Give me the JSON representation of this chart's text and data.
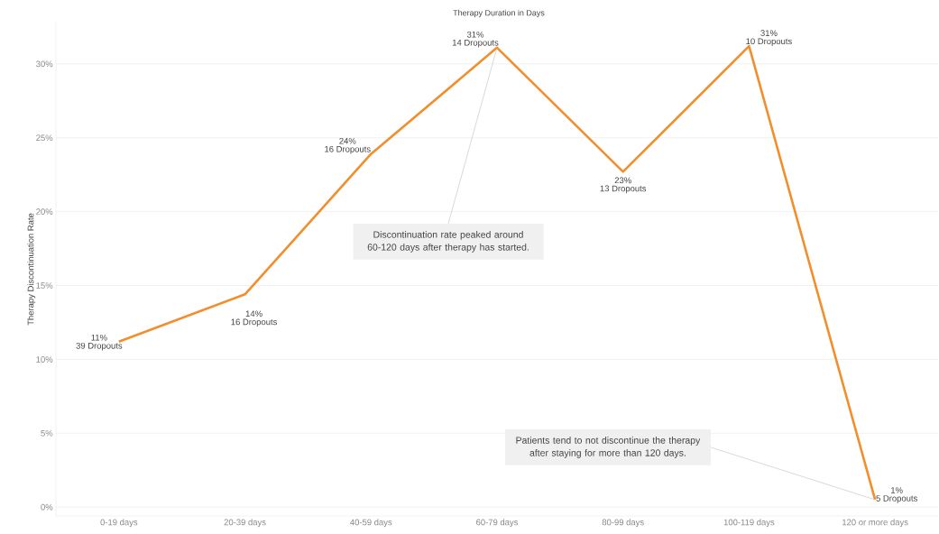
{
  "chart_data": {
    "type": "line",
    "title": "Therapy Duration in Days",
    "ylabel": "Therapy Discontinuation Rate",
    "categories": [
      "0-19 days",
      "20-39 days",
      "40-59 days",
      "60-79 days",
      "80-99 days",
      "100-119 days",
      "120 or more days"
    ],
    "series": [
      {
        "color": "#f28e2b",
        "values": [
          11.2,
          14.4,
          23.9,
          31.1,
          22.7,
          31.2,
          0.5
        ],
        "value_labels": [
          "11%",
          "14%",
          "24%",
          "31%",
          "23%",
          "31%",
          "1%"
        ]
      }
    ],
    "ylim": [
      -0.6,
      32.8
    ],
    "yticks": [
      {
        "value": 0,
        "label": "0%"
      },
      {
        "value": 5,
        "label": "5%"
      },
      {
        "value": 10,
        "label": "10%"
      },
      {
        "value": 15,
        "label": "15%"
      },
      {
        "value": 20,
        "label": "20%"
      },
      {
        "value": 25,
        "label": "25%"
      },
      {
        "value": 30,
        "label": "30%"
      }
    ],
    "grid": "y",
    "marker": "none",
    "line_style": "solid",
    "annotations": [
      {
        "text": "39 Dropouts",
        "x": "0-19 days",
        "y": 11.2
      },
      {
        "text": "16 Dropouts",
        "x": "20-39 days",
        "y": 14.4
      },
      {
        "text": "16 Dropouts",
        "x": "40-59 days",
        "y": 23.9
      },
      {
        "text": "14 Dropouts",
        "x": "60-79 days",
        "y": 31.1
      },
      {
        "text": "13 Dropouts",
        "x": "80-99 days",
        "y": 22.7
      },
      {
        "text": "10 Dropouts",
        "x": "100-119 days",
        "y": 31.2
      },
      {
        "text": "5 Dropouts",
        "x": "120 or more days",
        "y": 0.5
      },
      {
        "text": "Discontinuation rate peaked around 60-120 days after therapy has started.",
        "x": "60-79 days",
        "y": 31.1
      },
      {
        "text": "Patients tend to not discontinue the therapy after staying for more than 120 days.",
        "x": "120 or more days",
        "y": 0.5
      }
    ]
  }
}
